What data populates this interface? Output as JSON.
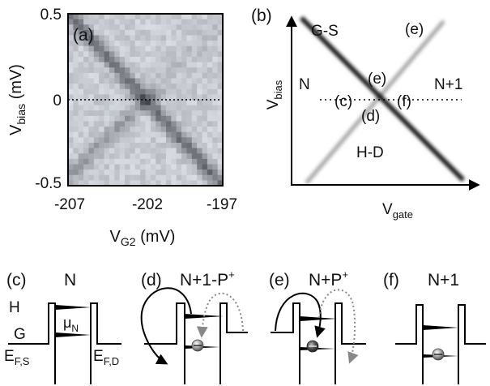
{
  "panel_a": {
    "label": "(a)",
    "y_ticks": [
      "0.5",
      "0",
      "-0.5"
    ],
    "x_ticks": [
      "-207",
      "-202",
      "-197"
    ],
    "y_axis": {
      "main": "V",
      "sub": "bias",
      "unit": " (mV)"
    },
    "x_axis": {
      "main": "V",
      "sub": "G2",
      "unit": " (mV)"
    },
    "x_range_mV": [
      -207,
      -197
    ],
    "y_range_mV": [
      -0.5,
      0.5
    ]
  },
  "panel_b": {
    "label": "(b)",
    "y_axis": {
      "main": "V",
      "sub": "bias"
    },
    "x_axis": {
      "main": "V",
      "sub": "gate"
    },
    "annotations": {
      "gs": "G-S",
      "e_top": "(e)",
      "n_left": "N",
      "n_right": "N+1",
      "e_mid": "(e)",
      "c": "(c)",
      "f": "(f)",
      "d": "(d)",
      "hd": "H-D"
    }
  },
  "panel_c": {
    "label": "(c)",
    "title": "N",
    "h": "H",
    "g": "G",
    "mu": {
      "main": "μ",
      "sub": "N"
    },
    "efs": {
      "main": "E",
      "sub": "F,S"
    },
    "efd": {
      "main": "E",
      "sub": "F,D"
    }
  },
  "panel_d": {
    "label": "(d)",
    "title_main": "N+1-P",
    "title_sup": "+"
  },
  "panel_e": {
    "label": "(e)",
    "title_main": "N+P",
    "title_sup": "+"
  },
  "panel_f": {
    "label": "(f)",
    "title": "N+1"
  }
}
